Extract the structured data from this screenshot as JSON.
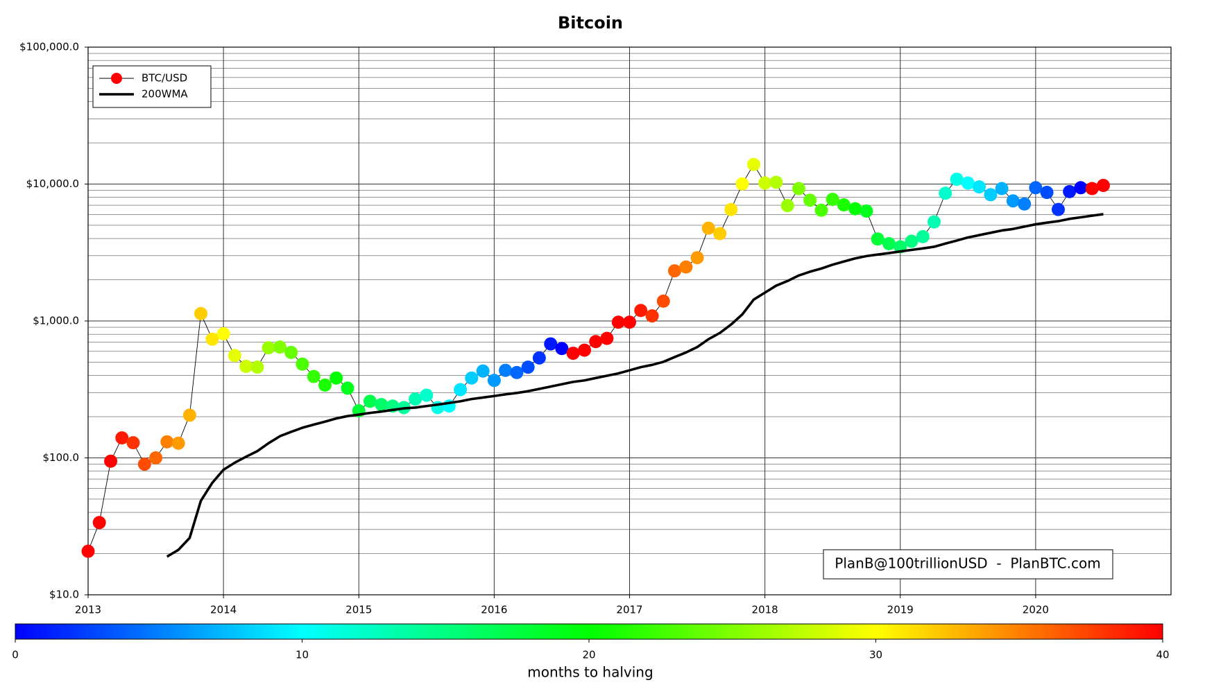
{
  "chart_data": {
    "type": "line",
    "title": "Bitcoin",
    "log_y": true,
    "grid": true,
    "legend_loc": "upper left",
    "x": [
      2013,
      2013.083,
      2013.167,
      2013.25,
      2013.333,
      2013.417,
      2013.5,
      2013.583,
      2013.667,
      2013.75,
      2013.833,
      2013.917,
      2014,
      2014.083,
      2014.167,
      2014.25,
      2014.333,
      2014.417,
      2014.5,
      2014.583,
      2014.667,
      2014.75,
      2014.833,
      2014.917,
      2015,
      2015.083,
      2015.167,
      2015.25,
      2015.333,
      2015.417,
      2015.5,
      2015.583,
      2015.667,
      2015.75,
      2015.833,
      2015.917,
      2016,
      2016.083,
      2016.167,
      2016.25,
      2016.333,
      2016.417,
      2016.5,
      2016.583,
      2016.667,
      2016.75,
      2016.833,
      2016.917,
      2017,
      2017.083,
      2017.167,
      2017.25,
      2017.333,
      2017.417,
      2017.5,
      2017.583,
      2017.667,
      2017.75,
      2017.833,
      2017.917,
      2018,
      2018.083,
      2018.167,
      2018.25,
      2018.333,
      2018.417,
      2018.5,
      2018.583,
      2018.667,
      2018.75,
      2018.833,
      2018.917,
      2019,
      2019.083,
      2019.167,
      2019.25,
      2019.333,
      2019.417,
      2019.5,
      2019.583,
      2019.667,
      2019.75,
      2019.833,
      2019.917,
      2020,
      2020.083,
      2020.167,
      2020.25,
      2020.333,
      2020.417,
      2020.5
    ],
    "series": [
      {
        "name": "BTC/USD",
        "color": "#ff0000",
        "line_color": "#000000",
        "values": [
          20.8,
          33.7,
          94.6,
          140,
          129,
          90,
          100,
          131,
          128,
          205,
          1132,
          736,
          806,
          559,
          466,
          460,
          637,
          645,
          589,
          484,
          393,
          340,
          383,
          323,
          221,
          259,
          245,
          239,
          233,
          269,
          287,
          233,
          239,
          315,
          383,
          431,
          368,
          436,
          420,
          460,
          537,
          680,
          629,
          581,
          612,
          707,
          746,
          980,
          980,
          1193,
          1089,
          1396,
          2323,
          2479,
          2899,
          4764,
          4345,
          6516,
          10030,
          13900,
          10170,
          10300,
          6960,
          9270,
          7620,
          6440,
          7730,
          7050,
          6600,
          6350,
          3970,
          3670,
          3480,
          3820,
          4130,
          5290,
          8570,
          10840,
          10170,
          9530,
          8360,
          9270,
          7530,
          7150,
          9400,
          8690,
          6520,
          8810,
          9400,
          9270,
          9770
        ],
        "months_to_halving": [
          42,
          41,
          40,
          39,
          38,
          37,
          36,
          35,
          34,
          33,
          32,
          31,
          30,
          29,
          28,
          27,
          26,
          25,
          24,
          23,
          22,
          21,
          20,
          19,
          18,
          17,
          16,
          15,
          14,
          13,
          12,
          11,
          10,
          9,
          8,
          7,
          6,
          5,
          4,
          3,
          2,
          1,
          0,
          45,
          44,
          43,
          42,
          41,
          40,
          39,
          38,
          37,
          36,
          35,
          34,
          33,
          32,
          31,
          30,
          29,
          28,
          27,
          26,
          25,
          24,
          23,
          22,
          21,
          20,
          19,
          18,
          17,
          16,
          15,
          14,
          13,
          12,
          11,
          10,
          9,
          8,
          7,
          6,
          5,
          4,
          3,
          2,
          1,
          0,
          47,
          46
        ]
      },
      {
        "name": "200WMA",
        "color": "#000000",
        "values": [
          null,
          null,
          null,
          null,
          null,
          null,
          null,
          19,
          21.3,
          26,
          48.6,
          65.7,
          81.9,
          92.2,
          102,
          112,
          128,
          144,
          155,
          166,
          175,
          184,
          194,
          202,
          207,
          213,
          218,
          224,
          230,
          233,
          239,
          245,
          252,
          259,
          269,
          276,
          283,
          291,
          298,
          307,
          319,
          332,
          345,
          359,
          368,
          383,
          398,
          414,
          436,
          460,
          478,
          503,
          545,
          589,
          645,
          736,
          817,
          942,
          1117,
          1432,
          1611,
          1811,
          1959,
          2148,
          2291,
          2415,
          2577,
          2717,
          2864,
          2978,
          3055,
          3133,
          3221,
          3304,
          3389,
          3483,
          3673,
          3864,
          4074,
          4236,
          4405,
          4581,
          4699,
          4887,
          5082,
          5224,
          5357,
          5569,
          5715,
          5875,
          6026
        ]
      }
    ],
    "xlim": [
      2013,
      2021
    ],
    "xticks": [
      2013,
      2014,
      2015,
      2016,
      2017,
      2018,
      2019,
      2020
    ],
    "ylim": [
      10,
      100000
    ],
    "yticks": [
      {
        "value": 10,
        "label": "$10.0"
      },
      {
        "value": 100,
        "label": "$100.0"
      },
      {
        "value": 1000,
        "label": "$1,000.0"
      },
      {
        "value": 10000,
        "label": "$10,000.0"
      },
      {
        "value": 100000,
        "label": "$100,000.0"
      }
    ],
    "annotation": "PlanB@100trillionUSD  -  PlanBTC.com",
    "colorbar": {
      "label": "months to halving",
      "lim": [
        0,
        40
      ],
      "ticks": [
        0,
        10,
        20,
        30,
        40
      ],
      "colormap": [
        "#0000ff",
        "#00ffff",
        "#00ff00",
        "#ffff00",
        "#ff0000"
      ]
    }
  }
}
